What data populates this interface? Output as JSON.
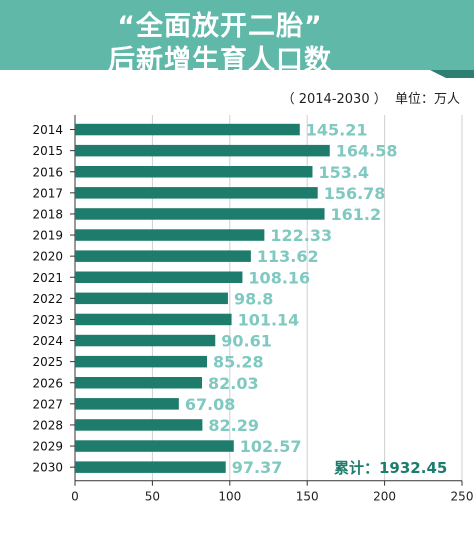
{
  "colors": {
    "banner": "#5fb8a8",
    "banner_dark": "#2f7e72",
    "bar": "#1e7c6c",
    "value_label": "#7fc9c1",
    "total_label": "#1e7c6c",
    "grid": "#cfcfcf"
  },
  "header": {
    "title": "“全面放开二胎”",
    "subtitle": "后新增生育人口数",
    "unit_note": "（ 2014-2030 ）  单位：万人"
  },
  "chart_data": {
    "type": "bar",
    "orientation": "horizontal",
    "categories": [
      "2014",
      "2015",
      "2016",
      "2017",
      "2018",
      "2019",
      "2020",
      "2021",
      "2022",
      "2023",
      "2024",
      "2025",
      "2026",
      "2027",
      "2028",
      "2029",
      "2030"
    ],
    "values": [
      145.21,
      164.58,
      153.4,
      156.78,
      161.2,
      122.33,
      113.62,
      108.16,
      98.8,
      101.14,
      90.61,
      85.28,
      82.03,
      67.08,
      82.29,
      102.57,
      97.37
    ],
    "value_labels": [
      "145.21",
      "164.58",
      "153.4",
      "156.78",
      "161.2",
      "122.33",
      "113.62",
      "108.16",
      "98.8",
      "101.14",
      "90.61",
      "85.28",
      "82.03",
      "67.08",
      "82.29",
      "102.57",
      "97.37"
    ],
    "xlim": [
      0,
      250
    ],
    "x_ticks": [
      0,
      50,
      100,
      150,
      200,
      250
    ],
    "x_tick_labels": [
      "0",
      "50",
      "100",
      "150",
      "200",
      "250"
    ],
    "grid": "vertical gridlines",
    "total_annotation": "累计：1932.45",
    "title": "“全面放开二胎”后新增生育人口数",
    "xlabel": "",
    "ylabel": ""
  }
}
